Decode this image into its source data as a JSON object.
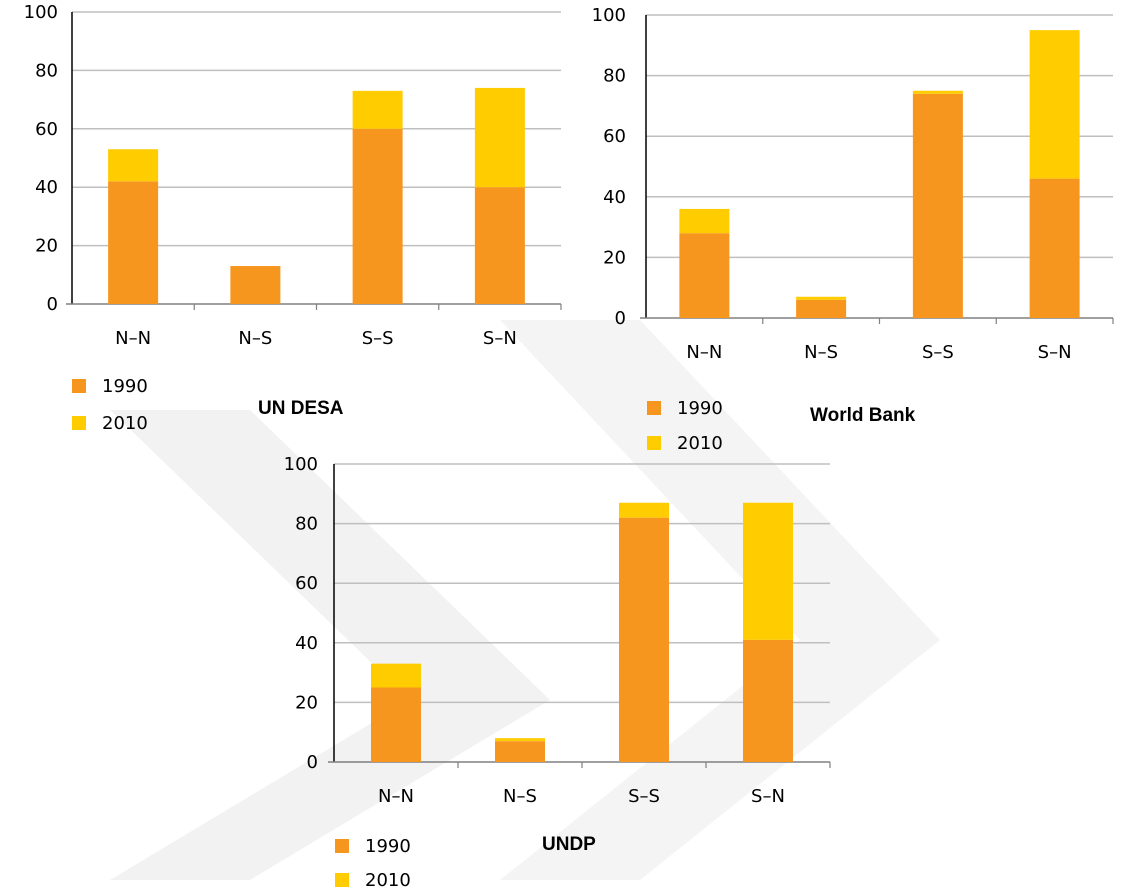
{
  "chart_data": [
    {
      "type": "bar",
      "stacked": true,
      "title": "UN DESA",
      "categories": [
        "N–N",
        "N–S",
        "S–S",
        "S–N"
      ],
      "series": [
        {
          "name": "1990",
          "values": [
            42,
            13,
            60,
            40
          ]
        },
        {
          "name": "2010",
          "values": [
            11,
            0,
            13,
            34
          ]
        }
      ],
      "ylim": [
        0,
        100
      ],
      "yticks": [
        "0",
        "20",
        "40",
        "60",
        "80",
        "100"
      ],
      "grid": true,
      "legend": "bottom-left"
    },
    {
      "type": "bar",
      "stacked": true,
      "title": "World Bank",
      "categories": [
        "N–N",
        "N–S",
        "S–S",
        "S–N"
      ],
      "series": [
        {
          "name": "1990",
          "values": [
            28,
            6,
            74,
            46
          ]
        },
        {
          "name": "2010",
          "values": [
            8,
            1,
            1,
            49
          ]
        }
      ],
      "ylim": [
        0,
        100
      ],
      "yticks": [
        "0",
        "20",
        "40",
        "60",
        "80",
        "100"
      ],
      "grid": true,
      "legend": "bottom-left"
    },
    {
      "type": "bar",
      "stacked": true,
      "title": "UNDP",
      "categories": [
        "N–N",
        "N–S",
        "S–S",
        "S–N"
      ],
      "series": [
        {
          "name": "1990",
          "values": [
            25,
            7,
            82,
            41
          ]
        },
        {
          "name": "2010",
          "values": [
            8,
            1,
            5,
            46
          ]
        }
      ],
      "ylim": [
        0,
        100
      ],
      "yticks": [
        "0",
        "20",
        "40",
        "60",
        "80",
        "100"
      ],
      "grid": true,
      "legend": "bottom-left"
    }
  ],
  "colors": {
    "series_1990": "#F7961E",
    "series_2010": "#FFCC00",
    "grid": "#BFBFBF",
    "axis": "#000000",
    "watermark": "#F2F2F2"
  }
}
